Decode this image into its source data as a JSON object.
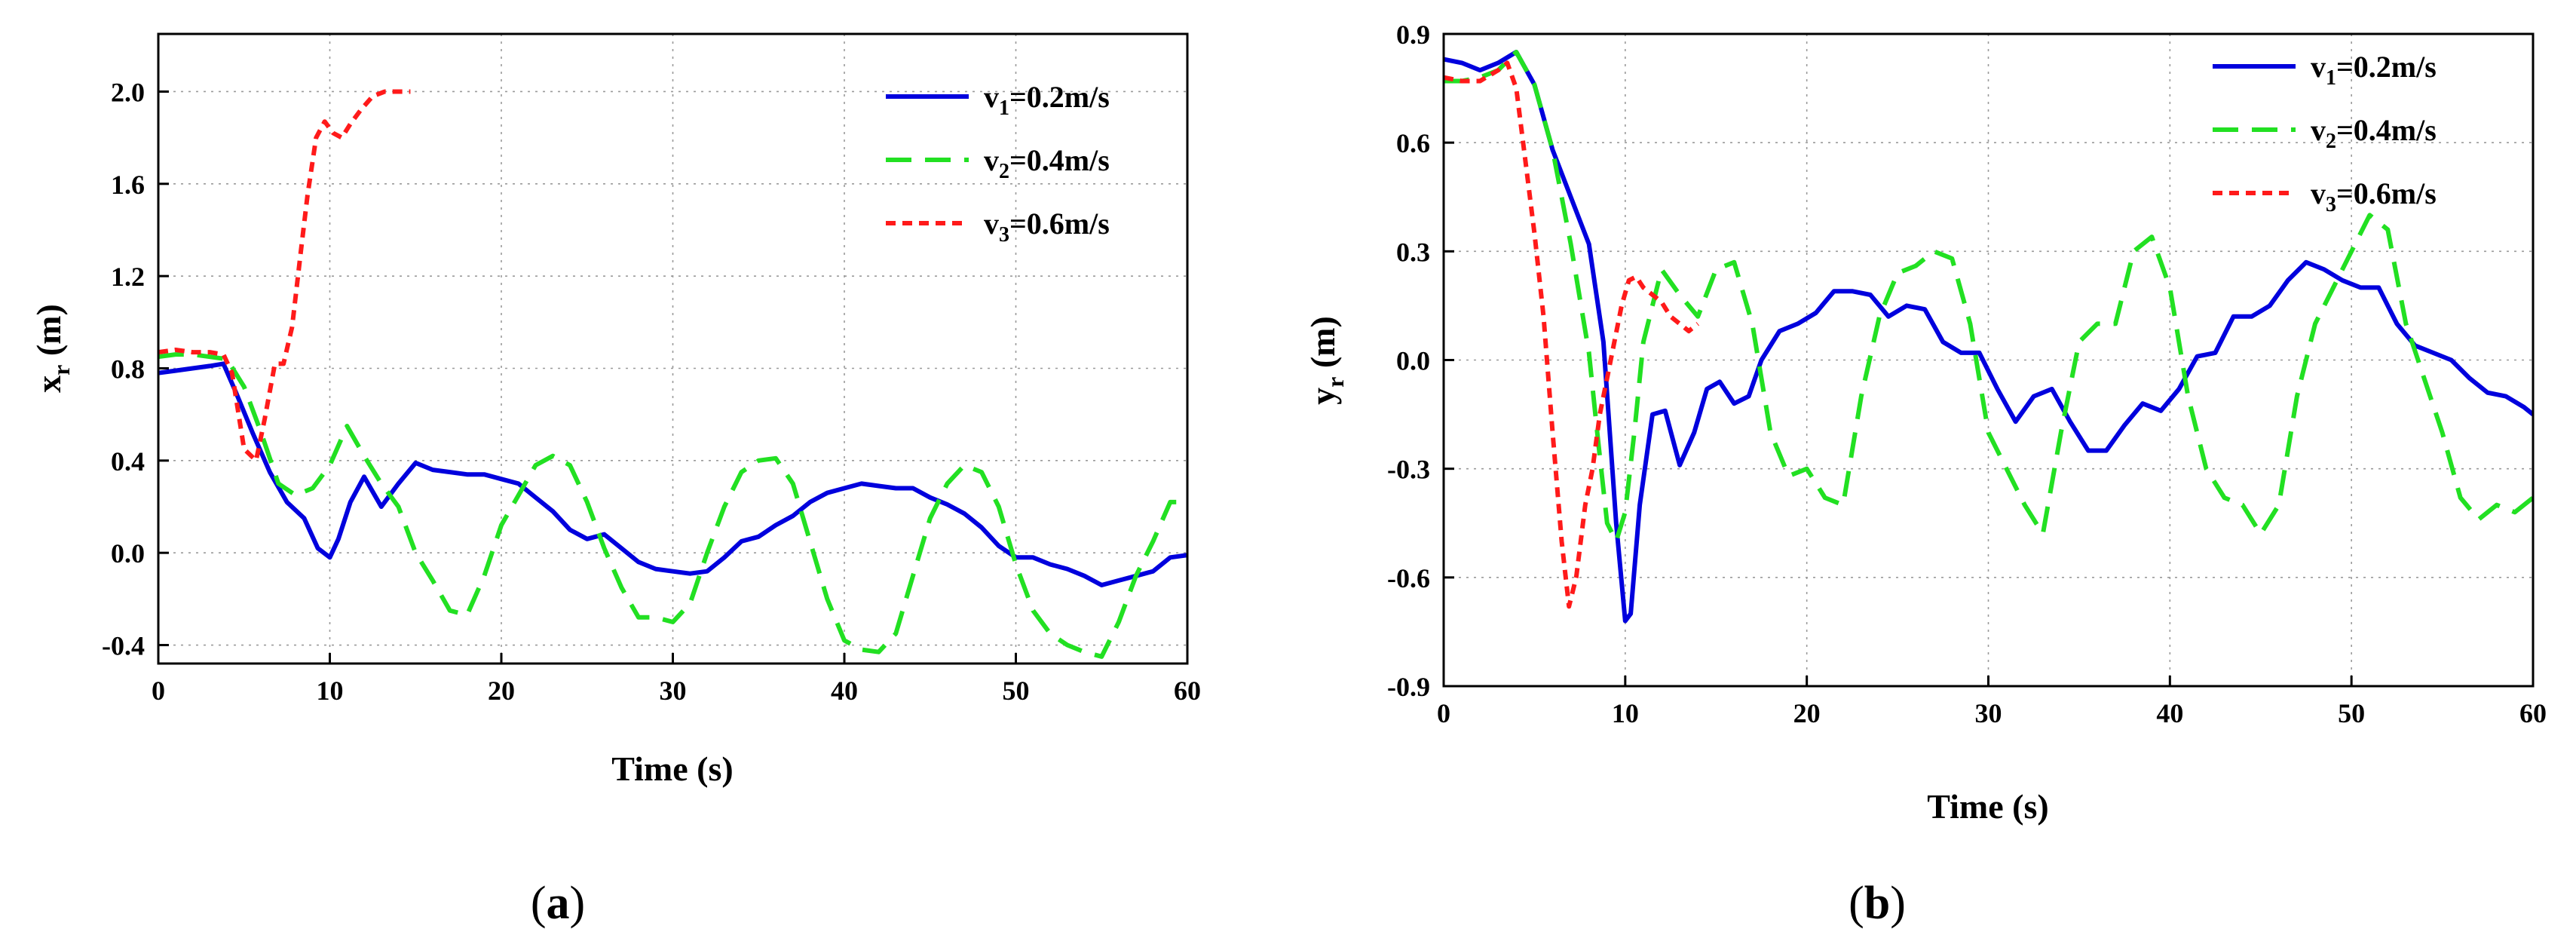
{
  "figure": {
    "panels": [
      {
        "label_open": "(",
        "label_letter": "a",
        "label_close": ")"
      },
      {
        "label_open": "(",
        "label_letter": "b",
        "label_close": ")"
      }
    ]
  },
  "legend": {
    "items": [
      {
        "prefix": "v",
        "sub": "1",
        "suffix": "=0.2m/s",
        "color": "#0000dd",
        "style": "solid"
      },
      {
        "prefix": "v",
        "sub": "2",
        "suffix": "=0.4m/s",
        "color": "#22e022",
        "style": "dashed"
      },
      {
        "prefix": "v",
        "sub": "3",
        "suffix": "=0.6m/s",
        "color": "#ff1a1a",
        "style": "dotted"
      }
    ]
  },
  "chart_data": [
    {
      "type": "line",
      "title": "",
      "xlabel": "Time (s)",
      "ylabel_main": "x",
      "ylabel_sub": "r",
      "ylabel_unit": " (m)",
      "xlim": [
        0,
        60
      ],
      "ylim": [
        -0.48,
        2.25
      ],
      "xticks": [
        0,
        10,
        20,
        30,
        40,
        50,
        60
      ],
      "xtick_labels": [
        "0",
        "10",
        "20",
        "30",
        "40",
        "50",
        "60"
      ],
      "yticks": [
        -0.4,
        0.0,
        0.4,
        0.8,
        1.2,
        1.6,
        2.0
      ],
      "ytick_labels": [
        "-0.4",
        "0.0",
        "0.4",
        "0.8",
        "1.2",
        "1.6",
        "2.0"
      ],
      "grid": true,
      "legend_position": "top-right",
      "series": [
        {
          "name": "v1=0.2m/s",
          "x": [
            0,
            1,
            2,
            3,
            3.8,
            4.5,
            5.5,
            6.5,
            7.5,
            8.5,
            9.3,
            10,
            10.5,
            11.2,
            12,
            13,
            14,
            15,
            16,
            17,
            18,
            19,
            20,
            21,
            22,
            23,
            24,
            25,
            26,
            27,
            28,
            29,
            30,
            31,
            32,
            33,
            34,
            35,
            36,
            37,
            38,
            39,
            40,
            41,
            42,
            43,
            44,
            45,
            46,
            47,
            48,
            49,
            50,
            51,
            52,
            53,
            54,
            55,
            56,
            57,
            58,
            59,
            60
          ],
          "y": [
            0.78,
            0.79,
            0.8,
            0.81,
            0.82,
            0.7,
            0.52,
            0.35,
            0.22,
            0.15,
            0.02,
            -0.02,
            0.06,
            0.22,
            0.33,
            0.2,
            0.3,
            0.39,
            0.36,
            0.35,
            0.34,
            0.34,
            0.32,
            0.3,
            0.24,
            0.18,
            0.1,
            0.06,
            0.08,
            0.02,
            -0.04,
            -0.07,
            -0.08,
            -0.09,
            -0.08,
            -0.02,
            0.05,
            0.07,
            0.12,
            0.16,
            0.22,
            0.26,
            0.28,
            0.3,
            0.29,
            0.28,
            0.28,
            0.24,
            0.21,
            0.17,
            0.11,
            0.03,
            -0.02,
            -0.02,
            -0.05,
            -0.07,
            -0.1,
            -0.14,
            -0.12,
            -0.1,
            -0.08,
            -0.02,
            -0.01
          ]
        },
        {
          "name": "v2=0.4m/s",
          "x": [
            0,
            1,
            2,
            3,
            4,
            5,
            6,
            7,
            8,
            9,
            10,
            11,
            12,
            13,
            14,
            15,
            16,
            17,
            18,
            19,
            20,
            21,
            22,
            23,
            24,
            25,
            26,
            27,
            28,
            29,
            30,
            31,
            32,
            33,
            34,
            35,
            36,
            37,
            38,
            39,
            40,
            41,
            42,
            43,
            44,
            45,
            46,
            47,
            48,
            49,
            50,
            51,
            52,
            53,
            54,
            55,
            56,
            57,
            58,
            59,
            60
          ],
          "y": [
            0.85,
            0.86,
            0.86,
            0.85,
            0.84,
            0.72,
            0.52,
            0.3,
            0.25,
            0.28,
            0.38,
            0.55,
            0.42,
            0.3,
            0.2,
            0.0,
            -0.12,
            -0.25,
            -0.27,
            -0.1,
            0.12,
            0.25,
            0.38,
            0.42,
            0.38,
            0.22,
            0.02,
            -0.15,
            -0.28,
            -0.28,
            -0.3,
            -0.22,
            0.0,
            0.2,
            0.35,
            0.4,
            0.41,
            0.3,
            0.05,
            -0.2,
            -0.38,
            -0.42,
            -0.43,
            -0.35,
            -0.1,
            0.15,
            0.3,
            0.38,
            0.35,
            0.2,
            -0.05,
            -0.25,
            -0.35,
            -0.4,
            -0.43,
            -0.45,
            -0.3,
            -0.1,
            0.05,
            0.22,
            0.22
          ]
        },
        {
          "name": "v3=0.6m/s",
          "x": [
            0,
            1,
            2,
            3,
            3.8,
            4.3,
            5,
            5.7,
            6.2,
            6.8,
            7.3,
            7.8,
            8.3,
            8.7,
            9.2,
            9.7,
            10.2,
            10.7,
            11.2,
            11.8,
            12.5,
            13.2,
            14,
            14.7
          ],
          "y": [
            0.87,
            0.88,
            0.87,
            0.87,
            0.86,
            0.78,
            0.45,
            0.4,
            0.58,
            0.82,
            0.82,
            0.98,
            1.3,
            1.55,
            1.8,
            1.87,
            1.82,
            1.8,
            1.86,
            1.92,
            1.98,
            2.0,
            2.0,
            2.0
          ]
        }
      ]
    },
    {
      "type": "line",
      "title": "",
      "xlabel": "Time (s)",
      "ylabel_main": "y",
      "ylabel_sub": "r",
      "ylabel_unit": " (m)",
      "xlim": [
        0,
        60
      ],
      "ylim": [
        -0.9,
        0.9
      ],
      "xticks": [
        0,
        10,
        20,
        30,
        40,
        50,
        60
      ],
      "xtick_labels": [
        "0",
        "10",
        "20",
        "30",
        "40",
        "50",
        "60"
      ],
      "yticks": [
        -0.9,
        -0.6,
        -0.3,
        0.0,
        0.3,
        0.6,
        0.9
      ],
      "ytick_labels": [
        "-0.9",
        "-0.6",
        "-0.3",
        "0.0",
        "0.3",
        "0.6",
        "0.9"
      ],
      "grid": true,
      "legend_position": "top-right",
      "series": [
        {
          "name": "v1=0.2m/s",
          "x": [
            0,
            1,
            2,
            3,
            4,
            5,
            6,
            7,
            8,
            8.8,
            9.5,
            10,
            10.3,
            10.8,
            11.5,
            12.2,
            13,
            13.8,
            14.5,
            15.2,
            16,
            16.8,
            17.5,
            18.5,
            19.5,
            20.5,
            21.5,
            22.5,
            23.5,
            24.5,
            25.5,
            26.5,
            27.5,
            28.5,
            29.5,
            30.5,
            31.5,
            32.5,
            33.5,
            34.5,
            35.5,
            36.5,
            37.5,
            38.5,
            39.5,
            40.5,
            41.5,
            42.5,
            43.5,
            44.5,
            45.5,
            46.5,
            47.5,
            48.5,
            49.5,
            50.5,
            51.5,
            52.5,
            53.5,
            54.5,
            55.5,
            56.5,
            57.5,
            58.5,
            59.5,
            60
          ],
          "y": [
            0.83,
            0.82,
            0.8,
            0.82,
            0.85,
            0.76,
            0.58,
            0.45,
            0.32,
            0.05,
            -0.45,
            -0.72,
            -0.7,
            -0.4,
            -0.15,
            -0.14,
            -0.29,
            -0.2,
            -0.08,
            -0.06,
            -0.12,
            -0.1,
            0.0,
            0.08,
            0.1,
            0.13,
            0.19,
            0.19,
            0.18,
            0.12,
            0.15,
            0.14,
            0.05,
            0.02,
            0.02,
            -0.08,
            -0.17,
            -0.1,
            -0.08,
            -0.17,
            -0.25,
            -0.25,
            -0.18,
            -0.12,
            -0.14,
            -0.08,
            0.01,
            0.02,
            0.12,
            0.12,
            0.15,
            0.22,
            0.27,
            0.25,
            0.22,
            0.2,
            0.2,
            0.1,
            0.04,
            0.02,
            0.0,
            -0.05,
            -0.09,
            -0.1,
            -0.13,
            -0.15
          ]
        },
        {
          "name": "v2=0.4m/s",
          "x": [
            0,
            1,
            2,
            3,
            4,
            5,
            6,
            7,
            8,
            8.5,
            9,
            9.5,
            10,
            10.5,
            11,
            12,
            13,
            14,
            15,
            16,
            17,
            18,
            19,
            20,
            21,
            22,
            23,
            24,
            25,
            26,
            27,
            28,
            29,
            30,
            31,
            32,
            33,
            34,
            35,
            36,
            37,
            38,
            39,
            40,
            41,
            42,
            43,
            44,
            45,
            46,
            47,
            48,
            49,
            50,
            51,
            52,
            53,
            54,
            55,
            56,
            57,
            58,
            59,
            60
          ],
          "y": [
            0.77,
            0.77,
            0.78,
            0.8,
            0.85,
            0.76,
            0.58,
            0.32,
            0.02,
            -0.22,
            -0.45,
            -0.5,
            -0.42,
            -0.2,
            0.05,
            0.25,
            0.18,
            0.12,
            0.25,
            0.27,
            0.1,
            -0.2,
            -0.32,
            -0.3,
            -0.38,
            -0.4,
            -0.1,
            0.12,
            0.24,
            0.26,
            0.3,
            0.28,
            0.1,
            -0.2,
            -0.3,
            -0.4,
            -0.48,
            -0.2,
            0.05,
            0.1,
            0.1,
            0.3,
            0.34,
            0.2,
            -0.1,
            -0.3,
            -0.38,
            -0.4,
            -0.48,
            -0.4,
            -0.1,
            0.1,
            0.2,
            0.3,
            0.4,
            0.36,
            0.1,
            -0.05,
            -0.2,
            -0.38,
            -0.44,
            -0.4,
            -0.42,
            -0.38
          ]
        },
        {
          "name": "v3=0.6m/s",
          "x": [
            0,
            1,
            2,
            3,
            3.5,
            4,
            4.5,
            5,
            5.5,
            6,
            6.5,
            6.9,
            7.3,
            7.8,
            8.2,
            8.6,
            9.0,
            9.4,
            9.8,
            10.2,
            10.6,
            11,
            11.5,
            12,
            12.5,
            13,
            13.5,
            14
          ],
          "y": [
            0.78,
            0.77,
            0.77,
            0.8,
            0.82,
            0.75,
            0.55,
            0.35,
            0.12,
            -0.2,
            -0.5,
            -0.68,
            -0.6,
            -0.4,
            -0.3,
            -0.15,
            -0.05,
            0.05,
            0.15,
            0.22,
            0.23,
            0.2,
            0.18,
            0.16,
            0.12,
            0.1,
            0.08,
            0.1
          ]
        }
      ]
    }
  ]
}
